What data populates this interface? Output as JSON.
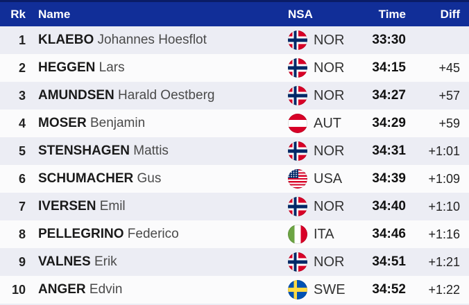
{
  "table": {
    "headers": {
      "rk": "Rk",
      "name": "Name",
      "nsa": "NSA",
      "time": "Time",
      "diff": "Diff"
    },
    "rows": [
      {
        "rank": "1",
        "surname": "KLAEBO",
        "firstname": "Johannes Hoesflot",
        "nsa": "NOR",
        "time": "33:30",
        "diff": ""
      },
      {
        "rank": "2",
        "surname": "HEGGEN",
        "firstname": "Lars",
        "nsa": "NOR",
        "time": "34:15",
        "diff": "+45"
      },
      {
        "rank": "3",
        "surname": "AMUNDSEN",
        "firstname": "Harald Oestberg",
        "nsa": "NOR",
        "time": "34:27",
        "diff": "+57"
      },
      {
        "rank": "4",
        "surname": "MOSER",
        "firstname": "Benjamin",
        "nsa": "AUT",
        "time": "34:29",
        "diff": "+59"
      },
      {
        "rank": "5",
        "surname": "STENSHAGEN",
        "firstname": "Mattis",
        "nsa": "NOR",
        "time": "34:31",
        "diff": "+1:01"
      },
      {
        "rank": "6",
        "surname": "SCHUMACHER",
        "firstname": "Gus",
        "nsa": "USA",
        "time": "34:39",
        "diff": "+1:09"
      },
      {
        "rank": "7",
        "surname": "IVERSEN",
        "firstname": "Emil",
        "nsa": "NOR",
        "time": "34:40",
        "diff": "+1:10"
      },
      {
        "rank": "8",
        "surname": "PELLEGRINO",
        "firstname": "Federico",
        "nsa": "ITA",
        "time": "34:46",
        "diff": "+1:16"
      },
      {
        "rank": "9",
        "surname": "VALNES",
        "firstname": "Erik",
        "nsa": "NOR",
        "time": "34:51",
        "diff": "+1:21"
      },
      {
        "rank": "10",
        "surname": "ANGER",
        "firstname": "Edvin",
        "nsa": "SWE",
        "time": "34:52",
        "diff": "+1:22"
      }
    ],
    "flag_icons": {
      "NOR": "norway-flag-icon",
      "AUT": "austria-flag-icon",
      "USA": "usa-flag-icon",
      "ITA": "italy-flag-icon",
      "SWE": "sweden-flag-icon"
    }
  },
  "colors": {
    "header_background": "#112E98",
    "header_top_border": "#0A1C66",
    "header_text": "#FFFFFF",
    "row_tinted": "#ECEDF4",
    "row_plain": "#FBFBFC",
    "text_primary": "#1A1A1A",
    "text_secondary": "#4A4A4A",
    "flag_red": "#D80027",
    "flag_navy": "#002868",
    "flag_green": "#6DA544",
    "flag_blue": "#0052B4",
    "flag_yellow": "#FFDA44"
  }
}
